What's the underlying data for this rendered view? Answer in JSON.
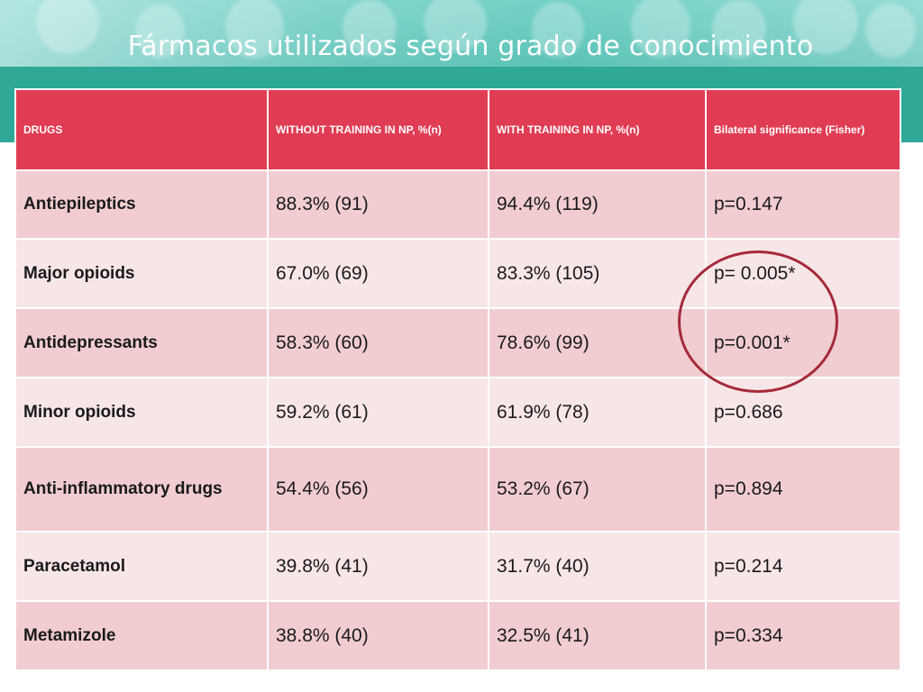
{
  "title": "Fármacos utilizados según grado de conocimiento",
  "table": {
    "headers": [
      "DRUGS",
      "WITHOUT TRAINING IN NP, %(n)",
      "WITH TRAINING IN NP, %(n)",
      "Bilateral significance (Fisher)"
    ],
    "rows": [
      {
        "drug": "Antiepileptics",
        "without": "88.3% (91)",
        "with": "94.4% (119)",
        "p": "p=0.147"
      },
      {
        "drug": "Major opioids",
        "without": "67.0% (69)",
        "with": "83.3% (105)",
        "p": "p= 0.005*"
      },
      {
        "drug": "Antidepressants",
        "without": "58.3% (60)",
        "with": "78.6% (99)",
        "p": "p=0.001*"
      },
      {
        "drug": "Minor opioids",
        "without": "59.2% (61)",
        "with": "61.9% (78)",
        "p": "p=0.686"
      },
      {
        "drug": "Anti-inflammatory drugs",
        "without": "54.4% (56)",
        "with": "53.2% (67)",
        "p": "p=0.894"
      },
      {
        "drug": "Paracetamol",
        "without": "39.8% (41)",
        "with": "31.7% (40)",
        "p": "p=0.214"
      },
      {
        "drug": "Metamizole",
        "without": "38.8% (40)",
        "with": "32.5% (41)",
        "p": "p=0.334"
      }
    ]
  },
  "colors": {
    "header_bg": "#e03c54",
    "row_odd": "#f1cdd1",
    "row_even": "#f7e6e7",
    "banner": "#3fb8ab",
    "highlight_circle": "#a52a3a"
  }
}
